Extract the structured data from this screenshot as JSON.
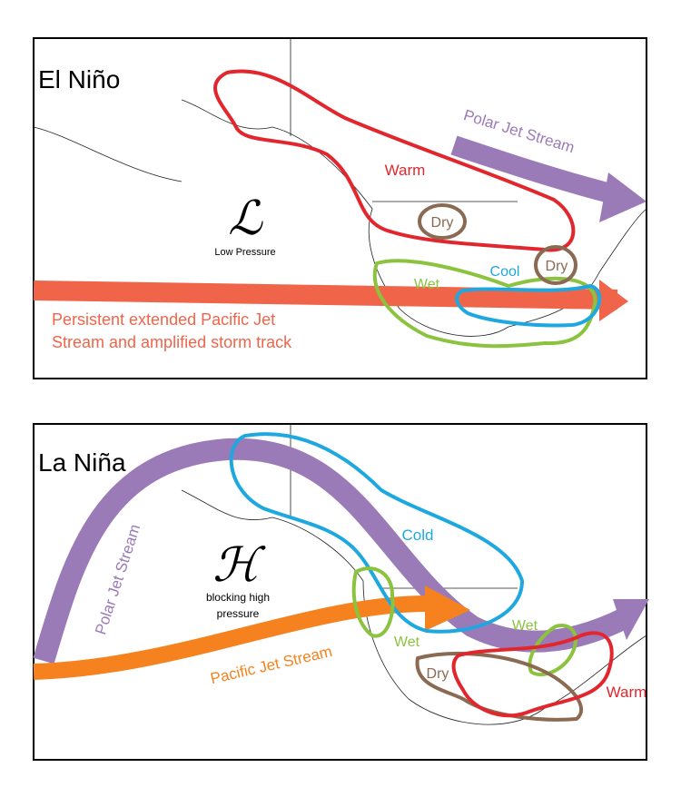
{
  "panels": [
    {
      "title": "El Niño",
      "labels": [
        "Polar Jet Stream",
        "Warm",
        "ℒ",
        "Low Pressure",
        "Dry",
        "Dry",
        "Wet",
        "Cool",
        "Persistent extended Pacific Jet",
        "Stream and amplified storm track"
      ]
    },
    {
      "title": "La Niña",
      "labels": [
        "Polar Jet Stream",
        "Cold",
        "ℋ",
        "blocking high",
        "pressure",
        "Pacific Jet Stream",
        "Wet",
        "Wet",
        "Dry",
        "Warm"
      ]
    }
  ]
}
